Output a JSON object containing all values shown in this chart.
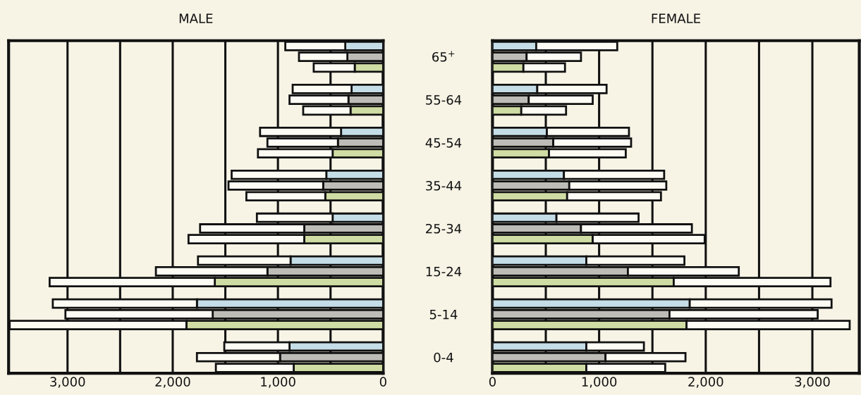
{
  "chart_data": [
    {
      "type": "bar",
      "orientation": "horizontal",
      "stacked": true,
      "title": "MALE",
      "tick_labels": "x",
      "grid": "x",
      "categories": [
        null,
        null,
        null,
        null,
        null,
        null,
        null,
        null,
        null,
        null,
        null,
        null,
        null,
        null,
        null,
        null,
        null,
        null,
        null,
        null,
        null,
        null,
        null,
        null,
        null,
        null,
        null,
        null,
        null,
        null,
        null
      ],
      "xlim": [
        3560,
        0
      ],
      "xticks": [
        0,
        {
          "value": 500,
          "label": null
        },
        {
          "value": 1000,
          "label": "1,000"
        },
        {
          "value": 1500,
          "label": null
        },
        {
          "value": 2000,
          "label": "2,000"
        },
        {
          "value": 2500,
          "label": null
        },
        {
          "value": 3000,
          "label": "3,000"
        }
      ],
      "series": [
        {
          "colors": [
            "#c5dde6",
            "#bdbcb6",
            "#cfdca3",
            null,
            "#c5dde6",
            "#bdbcb6",
            "#cfdca3",
            null,
            "#c5dde6",
            "#bdbcb6",
            "#cfdca3",
            null,
            "#c5dde6",
            "#bdbcb6",
            "#cfdca3",
            null,
            "#c5dde6",
            "#bdbcb6",
            "#cfdca3",
            null,
            "#c5dde6",
            "#bdbcb6",
            "#cfdca3",
            null,
            "#c5dde6",
            "#bdbcb6",
            "#cfdca3",
            null,
            "#c5dde6",
            "#bdbcb6",
            "#cfdca3"
          ],
          "values": [
            360,
            340,
            270,
            null,
            300,
            330,
            310,
            null,
            400,
            430,
            480,
            null,
            540,
            570,
            550,
            null,
            480,
            750,
            750,
            null,
            880,
            1100,
            1600,
            null,
            1770,
            1620,
            1870,
            null,
            890,
            980,
            850
          ]
        },
        {
          "color": "#fdfcf4",
          "values": [
            570,
            460,
            390,
            null,
            560,
            560,
            450,
            null,
            770,
            670,
            710,
            null,
            900,
            900,
            750,
            null,
            720,
            990,
            1100,
            null,
            880,
            1060,
            1570,
            null,
            1370,
            1400,
            1680,
            null,
            620,
            790,
            740
          ]
        }
      ]
    },
    {
      "type": "bar",
      "orientation": "horizontal",
      "stacked": true,
      "title": "FEMALE",
      "grid": "x",
      "categories": [
        null,
        "65$^{+}$",
        null,
        null,
        null,
        "55-64",
        null,
        null,
        null,
        "45-54",
        null,
        null,
        null,
        "35-44",
        null,
        null,
        null,
        "25-34",
        null,
        null,
        null,
        "15-24",
        null,
        null,
        null,
        "5-14",
        null,
        null,
        null,
        "0-4",
        null
      ],
      "xlim": [
        0,
        3440
      ],
      "xticks": [
        0,
        {
          "value": 500,
          "label": null
        },
        {
          "value": 1000,
          "label": "1,000"
        },
        {
          "value": 1500,
          "label": null
        },
        {
          "value": 2000,
          "label": "2,000"
        },
        {
          "value": 2500,
          "label": null
        },
        {
          "value": 3000,
          "label": "3,000"
        }
      ],
      "series": [
        {
          "colors": [
            "#c5dde6",
            "#bdbcb6",
            "#cfdca3",
            null,
            "#c5dde6",
            "#bdbcb6",
            "#cfdca3",
            null,
            "#c5dde6",
            "#bdbcb6",
            "#cfdca3",
            null,
            "#c5dde6",
            "#bdbcb6",
            "#cfdca3",
            null,
            "#c5dde6",
            "#bdbcb6",
            "#cfdca3",
            null,
            "#c5dde6",
            "#bdbcb6",
            "#cfdca3",
            null,
            "#c5dde6",
            "#bdbcb6",
            "#cfdca3",
            null,
            "#c5dde6",
            "#bdbcb6",
            "#cfdca3"
          ],
          "values": [
            410,
            320,
            290,
            null,
            420,
            340,
            270,
            null,
            510,
            570,
            530,
            null,
            670,
            720,
            700,
            null,
            600,
            830,
            940,
            null,
            880,
            1270,
            1700,
            null,
            1850,
            1660,
            1820,
            null,
            880,
            1060,
            880
          ]
        },
        {
          "color": "#fdfcf4",
          "values": [
            760,
            510,
            390,
            null,
            650,
            600,
            420,
            null,
            770,
            730,
            720,
            null,
            940,
            910,
            880,
            null,
            770,
            1040,
            1050,
            null,
            920,
            1040,
            1470,
            null,
            1330,
            1390,
            1530,
            null,
            540,
            750,
            740
          ]
        }
      ]
    }
  ]
}
